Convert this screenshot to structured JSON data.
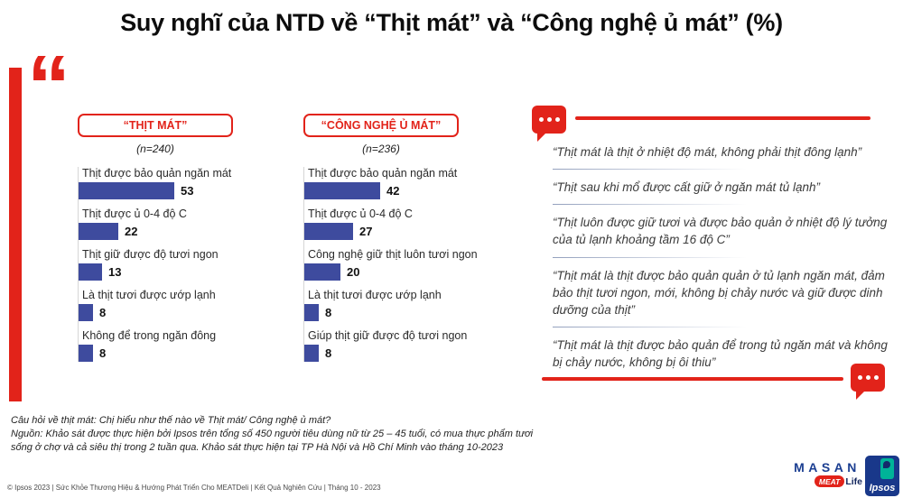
{
  "title": "Suy nghĩ của NTD về “Thịt mát” và “Công nghệ ủ mát” (%)",
  "chart_data": [
    {
      "type": "bar",
      "orientation": "horizontal",
      "title": "“THỊT MÁT”",
      "subtitle": "(n=240)",
      "categories": [
        "Thịt được bảo quản ngăn mát",
        "Thịt được ủ 0-4 độ C",
        "Thịt giữ được độ tươi ngon",
        "Là thịt tươi được ướp lạnh",
        "Không để trong ngăn đông"
      ],
      "values": [
        53,
        22,
        13,
        8,
        8
      ],
      "xlim": [
        0,
        60
      ],
      "bar_color": "#3e4b9e",
      "grid": false,
      "legend": "none"
    },
    {
      "type": "bar",
      "orientation": "horizontal",
      "title": "“CÔNG NGHỆ Ủ MÁT”",
      "subtitle": "(n=236)",
      "categories": [
        "Thịt được bảo quản ngăn mát",
        "Thịt được ủ 0-4 độ C",
        "Công nghệ giữ thịt luôn tươi ngon",
        "Là thịt tươi được ướp lạnh",
        "Giúp thịt giữ được độ tươi ngon"
      ],
      "values": [
        42,
        27,
        20,
        8,
        8
      ],
      "xlim": [
        0,
        60
      ],
      "bar_color": "#3e4b9e",
      "grid": false,
      "legend": "none"
    }
  ],
  "quotes": {
    "items": [
      "“Thịt mát là thịt ở nhiệt độ mát, không phải thịt đông lạnh”",
      "“Thịt sau khi mổ được cất giữ ở ngăn mát tủ lạnh”",
      "“Thịt luôn được giữ tươi và được bảo quản ở nhiệt độ lý tưởng của tủ lạnh khoảng tầm 16 độ C”",
      "“Thịt mát là thịt được bảo quản quản ở tủ lạnh ngăn mát, đảm bảo thịt tươi ngon, mới, không bị chảy nước và giữ được dinh dưỡng của thịt”",
      "“Thịt mát là thịt được bảo quản để trong tủ ngăn mát và không bị chảy nước, không bị ôi thiu”"
    ]
  },
  "footnote": {
    "question": "Câu hỏi về thịt mát: Chị hiểu như thế nào về Thịt mát/ Công nghệ ủ mát?",
    "source": "Nguồn: Khảo sát được thực hiện bởi Ipsos trên tổng số 450 người tiêu dùng nữ từ 25 – 45 tuổi, có mua thực phẩm tươi sống ở chợ và cả siêu thị trong 2 tuần qua. Khảo sát thực hiện tại TP Hà Nội và Hồ Chí Minh vào tháng 10-2023"
  },
  "footer": {
    "copyright": "© Ipsos 2023 | Sức Khỏe Thương Hiệu & Hướng Phát Triển Cho MEATDeli | Kết Quả Nghiên Cứu | Tháng 10 - 2023"
  },
  "logos": {
    "masan": "MASAN",
    "meat": "MEAT",
    "life": "Life",
    "ipsos": "Ipsos"
  },
  "colors": {
    "accent_red": "#e2231a",
    "bar_blue": "#3e4b9e",
    "masan_blue": "#1b3e91",
    "ipsos_blue": "#19388a",
    "ipsos_teal": "#00b398"
  }
}
